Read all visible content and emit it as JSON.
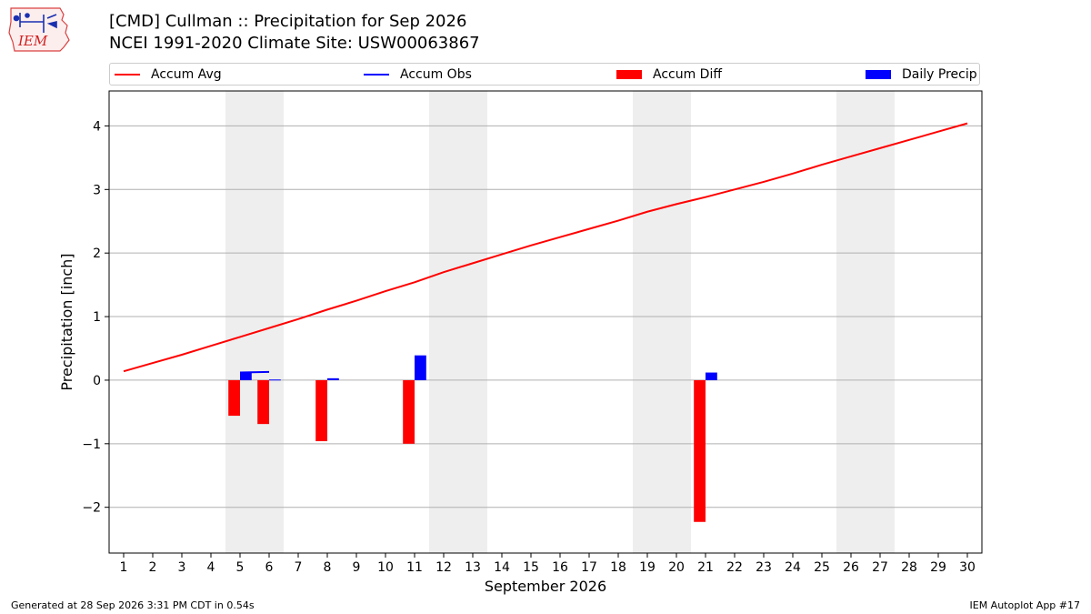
{
  "header": {
    "title_line1": "[CMD] Cullman :: Precipitation for Sep 2026",
    "title_line2": "NCEI 1991-2020 Climate Site: USW00063867"
  },
  "logo": {
    "text": "IEM",
    "icon": "iem-iowa-logo-icon"
  },
  "legend": {
    "items": [
      {
        "label": "Accum Avg",
        "kind": "line",
        "color": "#ff0000"
      },
      {
        "label": "Accum Obs",
        "kind": "line",
        "color": "#0000ff"
      },
      {
        "label": "Accum Diff",
        "kind": "bar",
        "color": "#ff0000"
      },
      {
        "label": "Daily Precip",
        "kind": "bar",
        "color": "#0000ff"
      }
    ]
  },
  "footer": {
    "left": "Generated at 28 Sep 2026 3:31 PM CDT in 0.54s",
    "right": "IEM Autoplot App #17"
  },
  "chart_data": {
    "type": "bar",
    "xlabel": "September 2026",
    "ylabel": "Precipitation [inch]",
    "xlim": [
      0.5,
      30.5
    ],
    "ylim": [
      -2.72,
      4.55
    ],
    "x_ticks": [
      1,
      2,
      3,
      4,
      5,
      6,
      7,
      8,
      9,
      10,
      11,
      12,
      13,
      14,
      15,
      16,
      17,
      18,
      19,
      20,
      21,
      22,
      23,
      24,
      25,
      26,
      27,
      28,
      29,
      30
    ],
    "y_ticks": [
      -2,
      -1,
      0,
      1,
      2,
      3,
      4
    ],
    "y_tick_labels": [
      "−2",
      "−1",
      "0",
      "1",
      "2",
      "3",
      "4"
    ],
    "grid": "horizontal",
    "weekend_shading": [
      [
        4.5,
        6.5
      ],
      [
        11.5,
        13.5
      ],
      [
        18.5,
        20.5
      ],
      [
        25.5,
        27.5
      ]
    ],
    "colors": {
      "avg": "#ff0000",
      "obs": "#0000ff",
      "diff": "#ff0000",
      "daily": "#0000ff",
      "weekend": "#eeeeee"
    },
    "series": [
      {
        "name": "Accum Avg",
        "type": "line",
        "x": [
          1,
          2,
          3,
          4,
          5,
          6,
          7,
          8,
          9,
          10,
          11,
          12,
          13,
          14,
          15,
          16,
          17,
          18,
          19,
          20,
          21,
          22,
          23,
          24,
          25,
          26,
          27,
          28,
          29,
          30
        ],
        "values": [
          0.14,
          0.27,
          0.4,
          0.54,
          0.68,
          0.82,
          0.96,
          1.11,
          1.25,
          1.4,
          1.54,
          1.7,
          1.84,
          1.98,
          2.12,
          2.25,
          2.38,
          2.51,
          2.65,
          2.77,
          2.88,
          3.0,
          3.12,
          3.25,
          3.39,
          3.52,
          3.65,
          3.78,
          3.91,
          4.04
        ]
      },
      {
        "name": "Accum Obs",
        "type": "line",
        "x": [
          5,
          6
        ],
        "values": [
          0.12,
          0.13
        ]
      },
      {
        "name": "Accum Diff",
        "type": "bar",
        "x": [
          5,
          6,
          8,
          11,
          21
        ],
        "values": [
          -0.56,
          -0.69,
          -0.96,
          -1.0,
          -2.23
        ]
      },
      {
        "name": "Daily Precip",
        "type": "bar",
        "x": [
          5,
          6,
          8,
          11,
          21
        ],
        "values": [
          0.12,
          0.01,
          0.03,
          0.39,
          0.12
        ]
      }
    ]
  }
}
